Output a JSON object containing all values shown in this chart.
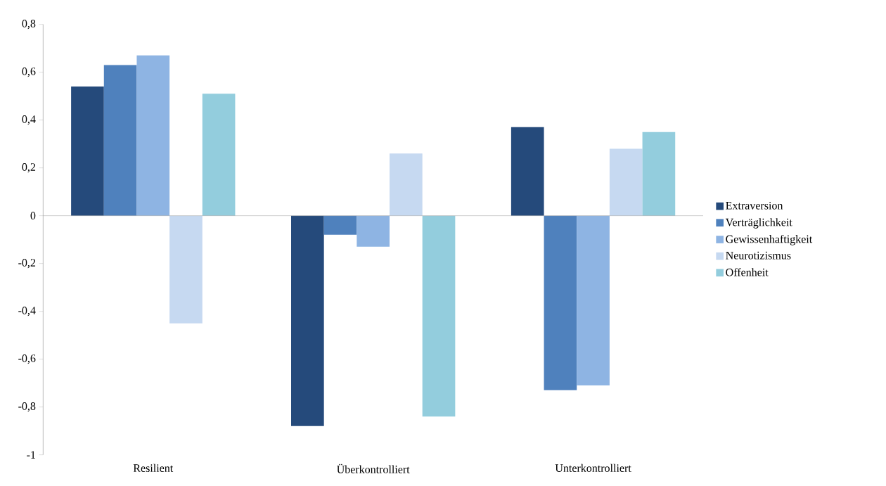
{
  "chart_data": {
    "type": "bar",
    "categories": [
      "Resilient",
      "Überkontrolliert",
      "Unterkontrolliert"
    ],
    "series": [
      {
        "name": "Extraversion",
        "color": "#254a7b",
        "values": [
          0.54,
          -0.88,
          0.37
        ]
      },
      {
        "name": "Verträglichkeit",
        "color": "#4f81bd",
        "values": [
          0.63,
          -0.08,
          -0.73
        ]
      },
      {
        "name": "Gewissenhaftigkeit",
        "color": "#8eb4e3",
        "values": [
          0.67,
          -0.13,
          -0.71
        ]
      },
      {
        "name": "Neurotizismus",
        "color": "#c6d9f1",
        "values": [
          -0.45,
          0.26,
          0.28
        ]
      },
      {
        "name": "Offenheit",
        "color": "#93cddd",
        "values": [
          0.51,
          -0.84,
          0.35
        ]
      }
    ],
    "ylim": [
      -1,
      0.8
    ],
    "yticks": [
      -1,
      {
        "value": -0.8,
        "label": "-0,8"
      },
      {
        "value": -0.6,
        "label": "-0,6"
      },
      {
        "value": -0.4,
        "label": "-0,4"
      },
      {
        "value": -0.2,
        "label": "-0,2"
      },
      0,
      {
        "value": 0.2,
        "label": "0,2"
      },
      {
        "value": 0.4,
        "label": "0,4"
      },
      {
        "value": 0.6,
        "label": "0,6"
      },
      {
        "value": 0.8,
        "label": "0,8"
      }
    ],
    "grid": false,
    "ref_lines": [
      {
        "axis": "y",
        "value": 0,
        "color": "#a6a6a6"
      }
    ],
    "legend": "right"
  }
}
